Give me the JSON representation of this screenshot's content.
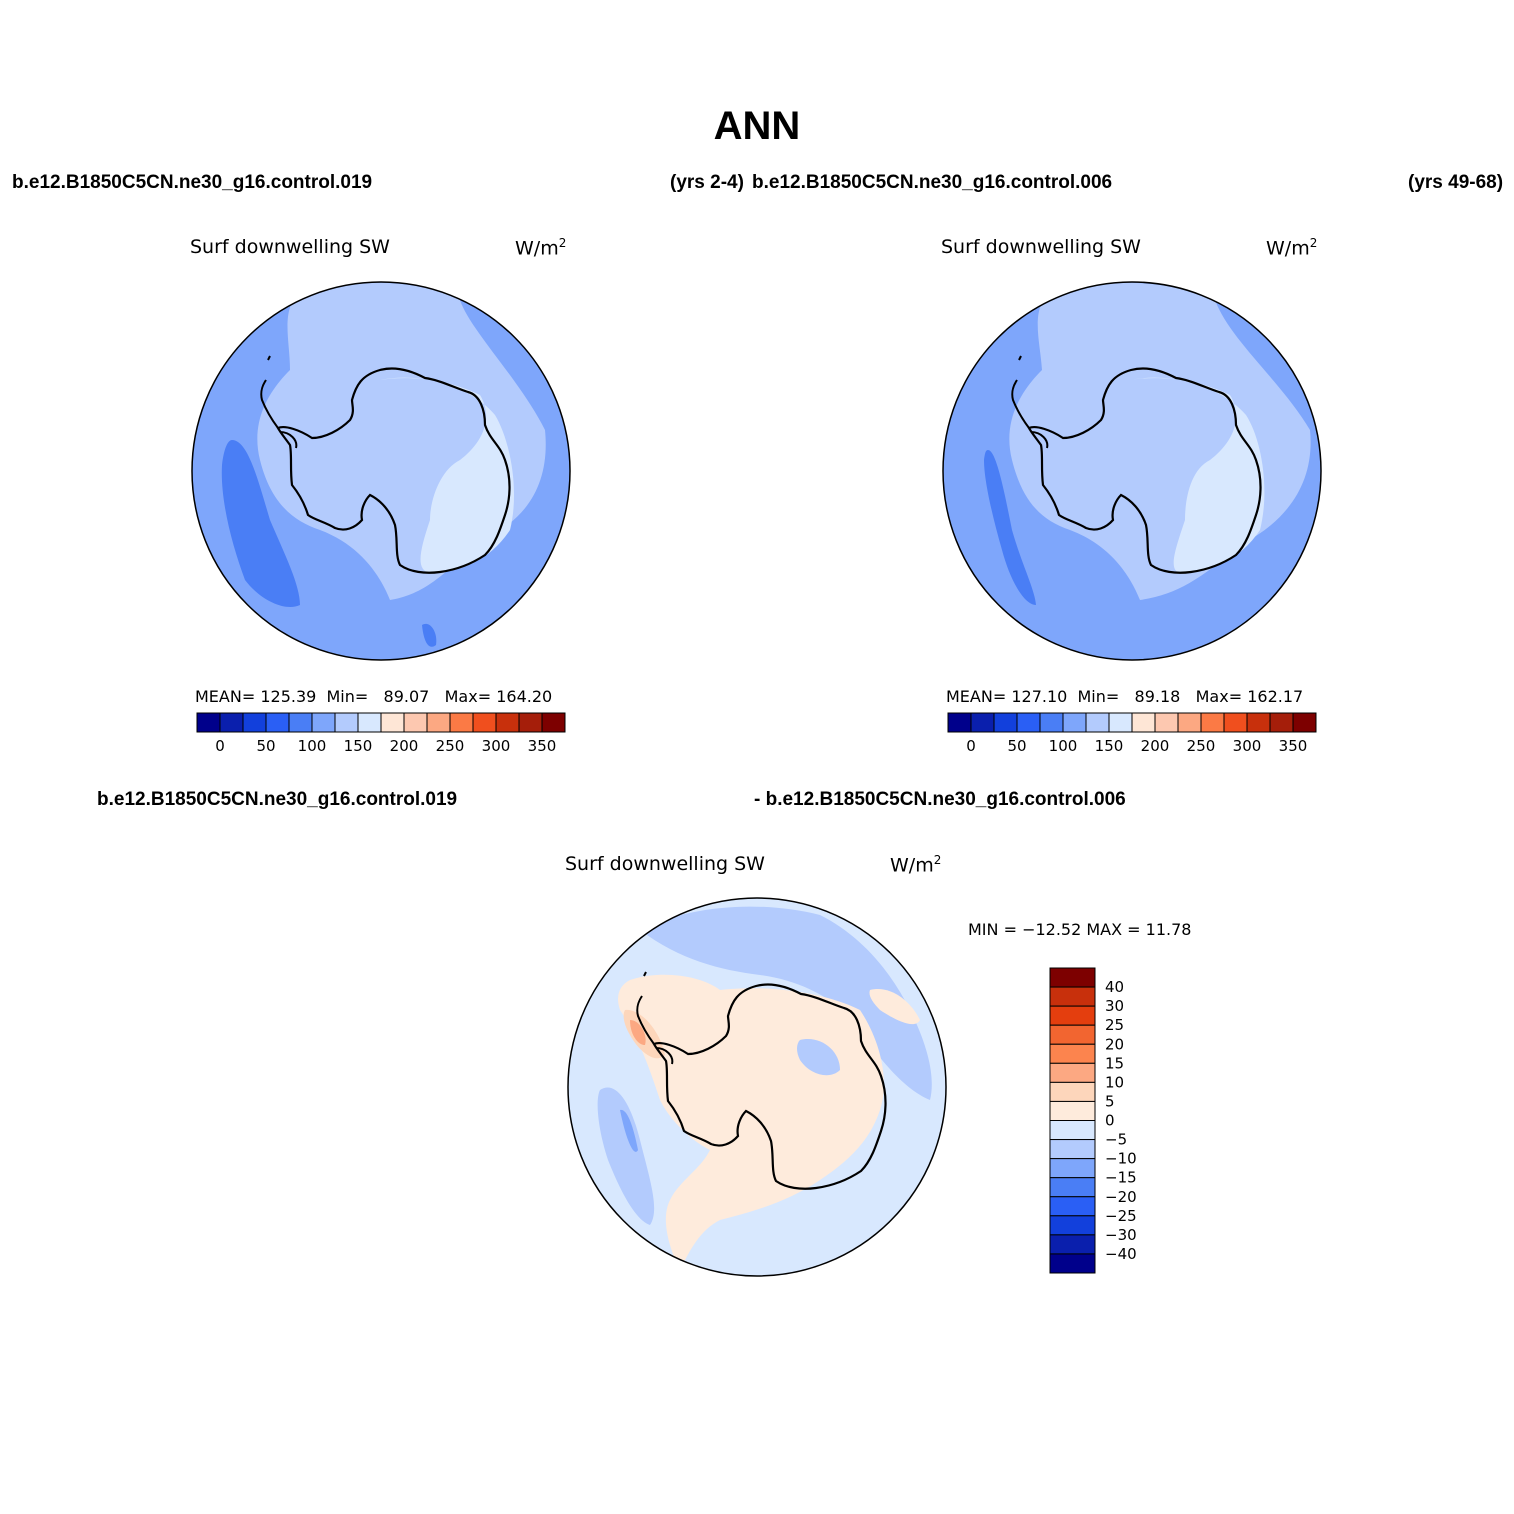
{
  "title": "ANN",
  "case_labels": {
    "case1": "b.e12.B1850C5CN.ne30_g16.control.019",
    "case1_years": "(yrs 2-4)",
    "case2": "b.e12.B1850C5CN.ne30_g16.control.006",
    "case2_years": "(yrs 49-68)",
    "diff_case1": "b.e12.B1850C5CN.ne30_g16.control.019",
    "diff_case2": "- b.e12.B1850C5CN.ne30_g16.control.006"
  },
  "panels": {
    "top_left": {
      "field": "Surf downwelling SW",
      "units": "W/m",
      "units_sup": "2",
      "stats": {
        "mean_label": "MEAN=",
        "mean": "125.39",
        "min_label": "Min=",
        "min": "89.07",
        "max_label": "Max=",
        "max": "164.20"
      }
    },
    "top_right": {
      "field": "Surf downwelling SW",
      "units": "W/m",
      "units_sup": "2",
      "stats": {
        "mean_label": "MEAN=",
        "mean": "127.10",
        "min_label": "Min=",
        "min": "89.18",
        "max_label": "Max=",
        "max": "162.17"
      }
    },
    "difference": {
      "field": "Surf downwelling SW",
      "units": "W/m",
      "units_sup": "2",
      "stats_text": "MIN = −12.52 MAX =   11.78"
    }
  },
  "colorbars": {
    "absolute": {
      "colors": [
        "#00008b",
        "#0a1fad",
        "#1240dc",
        "#2a5ff5",
        "#4a7ef5",
        "#7ea6fb",
        "#b3cbfd",
        "#d8e8fe",
        "#fee6d6",
        "#fdc8b0",
        "#fca882",
        "#fb7a45",
        "#f04f1e",
        "#c8300c",
        "#a51e0a",
        "#7d0000"
      ],
      "labels": [
        "0",
        "50",
        "100",
        "150",
        "200",
        "250",
        "300",
        "350"
      ]
    },
    "difference": {
      "colors": [
        "#7d0000",
        "#c8300c",
        "#e43e0e",
        "#f26530",
        "#fc844e",
        "#fca882",
        "#fdd6bb",
        "#feebdc",
        "#d8e8fe",
        "#b3cbfd",
        "#7ea6fb",
        "#4a7ef5",
        "#2a5ff5",
        "#1240dc",
        "#0a1fad",
        "#00008b"
      ],
      "labels": [
        "40",
        "30",
        "25",
        "20",
        "15",
        "10",
        "5",
        "0",
        "−5",
        "−10",
        "−15",
        "−20",
        "−25",
        "−30",
        "−40"
      ]
    }
  },
  "map_colors": {
    "ocean_low": "#4a7ef5",
    "ocean": "#7ea6fb",
    "mid": "#b3cbfd",
    "plateau": "#d8e8fe",
    "diff_ocean": "#d8e8fe",
    "diff_neg": "#b3cbfd",
    "diff_neg2": "#7ea6fb",
    "diff_pos": "#feebdc",
    "diff_pos2": "#fdd6bb",
    "diff_pos3": "#fca882"
  }
}
